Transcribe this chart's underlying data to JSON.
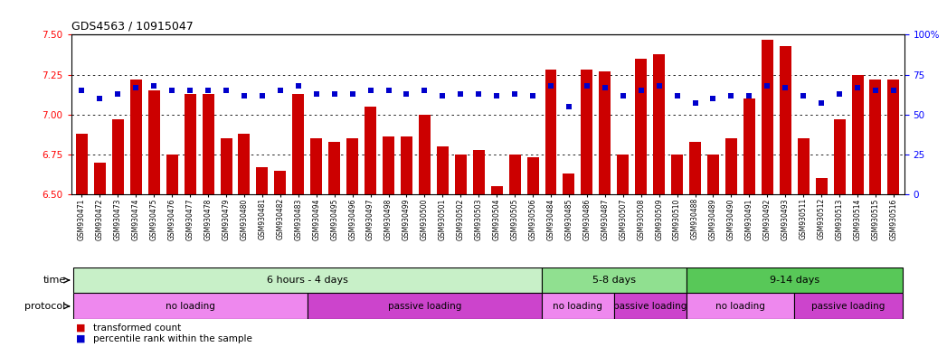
{
  "title": "GDS4563 / 10915047",
  "samples": [
    "GSM930471",
    "GSM930472",
    "GSM930473",
    "GSM930474",
    "GSM930475",
    "GSM930476",
    "GSM930477",
    "GSM930478",
    "GSM930479",
    "GSM930480",
    "GSM930481",
    "GSM930482",
    "GSM930483",
    "GSM930494",
    "GSM930495",
    "GSM930496",
    "GSM930497",
    "GSM930498",
    "GSM930499",
    "GSM930500",
    "GSM930501",
    "GSM930502",
    "GSM930503",
    "GSM930504",
    "GSM930505",
    "GSM930506",
    "GSM930484",
    "GSM930485",
    "GSM930486",
    "GSM930487",
    "GSM930507",
    "GSM930508",
    "GSM930509",
    "GSM930510",
    "GSM930488",
    "GSM930489",
    "GSM930490",
    "GSM930491",
    "GSM930492",
    "GSM930493",
    "GSM930511",
    "GSM930512",
    "GSM930513",
    "GSM930514",
    "GSM930515",
    "GSM930516"
  ],
  "bar_values": [
    6.88,
    6.7,
    6.97,
    7.22,
    7.15,
    6.75,
    7.13,
    7.13,
    6.85,
    6.88,
    6.67,
    6.65,
    7.13,
    6.85,
    6.83,
    6.85,
    7.05,
    6.86,
    6.86,
    7.0,
    6.8,
    6.75,
    6.78,
    6.55,
    6.75,
    6.73,
    7.28,
    6.63,
    7.28,
    7.27,
    6.75,
    7.35,
    7.38,
    6.75,
    6.83,
    6.75,
    6.85,
    7.1,
    7.47,
    7.43,
    6.85,
    6.6,
    6.97,
    7.25,
    7.22,
    7.22
  ],
  "percentile_values": [
    65,
    60,
    63,
    67,
    68,
    65,
    65,
    65,
    65,
    62,
    62,
    65,
    68,
    63,
    63,
    63,
    65,
    65,
    63,
    65,
    62,
    63,
    63,
    62,
    63,
    62,
    68,
    55,
    68,
    67,
    62,
    65,
    68,
    62,
    57,
    60,
    62,
    62,
    68,
    67,
    62,
    57,
    63,
    67,
    65,
    65
  ],
  "ylim_left": [
    6.5,
    7.5
  ],
  "ylim_right": [
    0,
    100
  ],
  "yticks_left": [
    6.5,
    6.75,
    7.0,
    7.25,
    7.5
  ],
  "yticks_right": [
    0,
    25,
    50,
    75,
    100
  ],
  "bar_color": "#cc0000",
  "dot_color": "#0000cc",
  "background_color": "#ffffff",
  "grid_values": [
    6.75,
    7.0,
    7.25
  ],
  "time_groups": [
    {
      "label": "6 hours - 4 days",
      "start": 0,
      "end": 26,
      "color": "#c8f0c8"
    },
    {
      "label": "5-8 days",
      "start": 26,
      "end": 34,
      "color": "#90e090"
    },
    {
      "label": "9-14 days",
      "start": 34,
      "end": 46,
      "color": "#58c858"
    }
  ],
  "protocol_groups": [
    {
      "label": "no loading",
      "start": 0,
      "end": 13,
      "color": "#ee88ee"
    },
    {
      "label": "passive loading",
      "start": 13,
      "end": 26,
      "color": "#cc44cc"
    },
    {
      "label": "no loading",
      "start": 26,
      "end": 30,
      "color": "#ee88ee"
    },
    {
      "label": "passive loading",
      "start": 30,
      "end": 34,
      "color": "#cc44cc"
    },
    {
      "label": "no loading",
      "start": 34,
      "end": 40,
      "color": "#ee88ee"
    },
    {
      "label": "passive loading",
      "start": 40,
      "end": 46,
      "color": "#cc44cc"
    }
  ],
  "legend_items": [
    {
      "label": "transformed count",
      "color": "#cc0000"
    },
    {
      "label": "percentile rank within the sample",
      "color": "#0000cc"
    }
  ]
}
